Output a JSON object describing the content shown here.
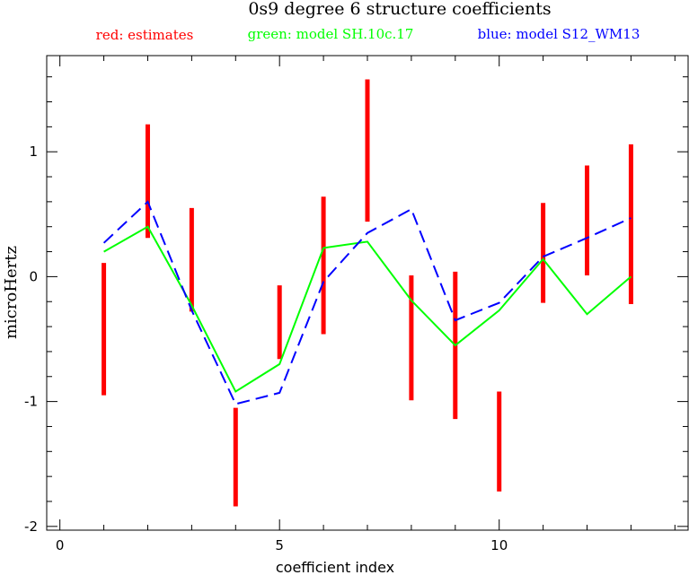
{
  "chart_data": {
    "type": "line",
    "title": "0s9 degree 6 structure coefficients",
    "xlabel": "coefficient index",
    "ylabel": "microHertz",
    "xlim": [
      -0.3,
      14.3
    ],
    "ylim": [
      -2.03,
      1.77
    ],
    "x_ticks": [
      0,
      5,
      10
    ],
    "y_ticks": [
      -2,
      -1,
      0,
      1
    ],
    "grid": false,
    "legend": [
      {
        "text": "red: estimates",
        "color": "#ff0000"
      },
      {
        "text": "green: model SH.10c.17",
        "color": "#00ff00"
      },
      {
        "text": "blue: model S12_WM13",
        "color": "#0000ff"
      }
    ],
    "estimates": {
      "name": "red: estimates",
      "color": "#ff0000",
      "x": [
        1,
        2,
        3,
        4,
        5,
        6,
        7,
        8,
        9,
        10,
        11,
        12,
        13
      ],
      "low": [
        -0.95,
        0.31,
        -0.28,
        -1.84,
        -0.66,
        -0.46,
        0.44,
        -0.99,
        -1.14,
        -1.72,
        -0.21,
        0.01,
        -0.22
      ],
      "high": [
        0.11,
        1.22,
        0.55,
        -1.05,
        -0.07,
        0.64,
        1.58,
        0.01,
        0.04,
        -0.92,
        0.59,
        0.89,
        1.06
      ]
    },
    "series": [
      {
        "name": "green: model SH.10c.17",
        "color": "#00ff00",
        "dash": "solid",
        "x": [
          1,
          2,
          3,
          4,
          5,
          6,
          7,
          8,
          9,
          10,
          11,
          12,
          13
        ],
        "values": [
          0.2,
          0.4,
          -0.23,
          -0.92,
          -0.7,
          0.23,
          0.28,
          -0.19,
          -0.55,
          -0.27,
          0.14,
          -0.3,
          0.0
        ]
      },
      {
        "name": "blue: model S12_WM13",
        "color": "#0000ff",
        "dash": "dashed",
        "x": [
          1,
          2,
          3,
          4,
          5,
          6,
          7,
          8,
          9,
          10,
          11,
          12,
          13
        ],
        "values": [
          0.27,
          0.6,
          -0.27,
          -1.02,
          -0.93,
          -0.04,
          0.35,
          0.54,
          -0.35,
          -0.21,
          0.16,
          0.31,
          0.47
        ]
      }
    ]
  }
}
